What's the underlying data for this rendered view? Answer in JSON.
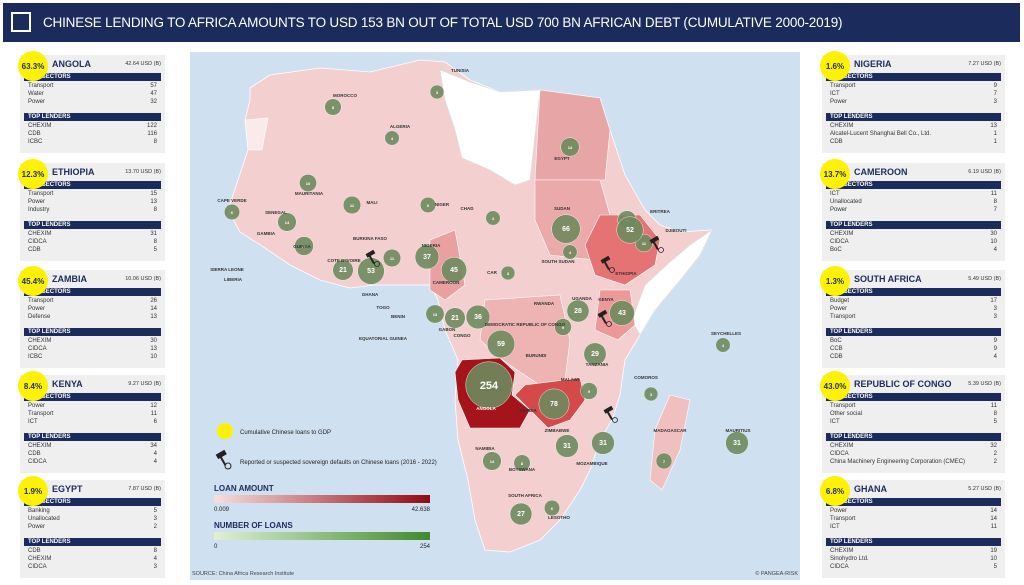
{
  "header": {
    "title": "CHINESE LENDING TO AFRICA AMOUNTS TO USD 153 BN OUT OF TOTAL USD 700 BN AFRICAN DEBT (CUMULATIVE 2000-2019)"
  },
  "panels": [
    {
      "country": "ANGOLA",
      "ratio": "63.3%",
      "amount": "42.64 USD (B)",
      "sectors_title": "TOP SECTORS",
      "sectors": [
        [
          "Transport",
          "57"
        ],
        [
          "Water",
          "47"
        ],
        [
          "Power",
          "32"
        ]
      ],
      "lenders_title": "TOP LENDERS",
      "lenders": [
        [
          "CHEXIM",
          "122"
        ],
        [
          "CDB",
          "116"
        ],
        [
          "ICBC",
          "8"
        ]
      ]
    },
    {
      "country": "ETHIOPIA",
      "ratio": "12.3%",
      "amount": "13.70 USD (B)",
      "sectors_title": "TOP SECTORS",
      "sectors": [
        [
          "Transport",
          "15"
        ],
        [
          "Power",
          "13"
        ],
        [
          "Industry",
          "8"
        ]
      ],
      "lenders_title": "TOP LENDERS",
      "lenders": [
        [
          "CHEXIM",
          "31"
        ],
        [
          "CIDCA",
          "8"
        ],
        [
          "CDB",
          "5"
        ]
      ]
    },
    {
      "country": "ZAMBIA",
      "ratio": "45.4%",
      "amount": "10.06 USD (B)",
      "sectors_title": "TOP SECTORS",
      "sectors": [
        [
          "Transport",
          "26"
        ],
        [
          "Power",
          "14"
        ],
        [
          "Defense",
          "13"
        ]
      ],
      "lenders_title": "TOP LENDERS",
      "lenders": [
        [
          "CHEXIM",
          "30"
        ],
        [
          "CIDCA",
          "13"
        ],
        [
          "ICBC",
          "10"
        ]
      ]
    },
    {
      "country": "KENYA",
      "ratio": "8.4%",
      "amount": "9.27 USD (B)",
      "sectors_title": "TOP SECTORS",
      "sectors": [
        [
          "Power",
          "12"
        ],
        [
          "Transport",
          "11"
        ],
        [
          "ICT",
          "6"
        ]
      ],
      "lenders_title": "TOP LENDERS",
      "lenders": [
        [
          "CHEXIM",
          "34"
        ],
        [
          "CDB",
          "4"
        ],
        [
          "CIDCA",
          "4"
        ]
      ]
    },
    {
      "country": "EGYPT",
      "ratio": "1.9%",
      "amount": "7.87 USD (B)",
      "sectors_title": "TOP SECTORS",
      "sectors": [
        [
          "Banking",
          "5"
        ],
        [
          "Unallocated",
          "3"
        ],
        [
          "Power",
          "2"
        ]
      ],
      "lenders_title": "TOP LENDERS",
      "lenders": [
        [
          "CDB",
          "8"
        ],
        [
          "CHEXIM",
          "4"
        ],
        [
          "CIDCA",
          "3"
        ]
      ]
    },
    {
      "country": "NIGERIA",
      "ratio": "1.6%",
      "amount": "7.27 USD (B)",
      "sectors_title": "TOP SECTORS",
      "sectors": [
        [
          "Transport",
          "9"
        ],
        [
          "ICT",
          "7"
        ],
        [
          "Power",
          "3"
        ]
      ],
      "lenders_title": "TOP LENDERS",
      "lenders": [
        [
          "CHEXIM",
          "13"
        ],
        [
          "Alcatel-Lucent Shanghai Bell Co., Ltd.",
          "1"
        ],
        [
          "CDB",
          "1"
        ]
      ]
    },
    {
      "country": "CAMEROON",
      "ratio": "13.7%",
      "amount": "6.19 USD (B)",
      "sectors_title": "TOP SECTORS",
      "sectors": [
        [
          "ICT",
          "11"
        ],
        [
          "Unallocated",
          "8"
        ],
        [
          "Power",
          "7"
        ]
      ],
      "lenders_title": "TOP LENDERS",
      "lenders": [
        [
          "CHEXIM",
          "30"
        ],
        [
          "CIDCA",
          "10"
        ],
        [
          "BoC",
          "4"
        ]
      ]
    },
    {
      "country": "SOUTH AFRICA",
      "ratio": "1.3%",
      "amount": "5.49 USD (B)",
      "sectors_title": "TOP SECTORS",
      "sectors": [
        [
          "Budget",
          "17"
        ],
        [
          "Power",
          "3"
        ],
        [
          "Transport",
          "3"
        ]
      ],
      "lenders_title": "TOP LENDERS",
      "lenders": [
        [
          "BoC",
          "9"
        ],
        [
          "CCB",
          "9"
        ],
        [
          "CDB",
          "4"
        ]
      ]
    },
    {
      "country": "REPUBLIC OF CONGO",
      "ratio": "43.0%",
      "amount": "5.39 USD (B)",
      "sectors_title": "TOP SECTORS",
      "sectors": [
        [
          "Transport",
          "11"
        ],
        [
          "Other social",
          "8"
        ],
        [
          "ICT",
          "5"
        ]
      ],
      "lenders_title": "TOP LENDERS",
      "lenders": [
        [
          "CHEXIM",
          "32"
        ],
        [
          "CIDCA",
          "2"
        ],
        [
          "China Machinery Engineering Corporation (CMEC)",
          "2"
        ]
      ]
    },
    {
      "country": "GHANA",
      "ratio": "6.8%",
      "amount": "5.27 USD (B)",
      "sectors_title": "TOP SECTORS",
      "sectors": [
        [
          "Power",
          "14"
        ],
        [
          "Transport",
          "14"
        ],
        [
          "ICT",
          "11"
        ]
      ],
      "lenders_title": "TOP LENDERS",
      "lenders": [
        [
          "CHEXIM",
          "19"
        ],
        [
          "Sinohydro Ltd.",
          "10"
        ],
        [
          "CIDCA",
          "5"
        ]
      ]
    }
  ],
  "map": {
    "bubbles": [
      8,
      4,
      3,
      14,
      10,
      11,
      6,
      4,
      66,
      14,
      11,
      52,
      14,
      15,
      21,
      53,
      11,
      37,
      45,
      3,
      4,
      28,
      43,
      9,
      59,
      36,
      21,
      13,
      29,
      254,
      78,
      9,
      31,
      31,
      14,
      8,
      27,
      6,
      7,
      3,
      4,
      31,
      6
    ],
    "labels": [
      "TUNISIA",
      "MOROCCO",
      "ALGERIA",
      "EGYPT",
      "MAURITANIA",
      "MALI",
      "NIGER",
      "CHAD",
      "SUDAN",
      "ERITREA",
      "DJIBOUTI",
      "ETHIOPIA",
      "CAPE VERDE",
      "SENEGAL",
      "GAMBIA",
      "GUINEA",
      "BURKINA FASO",
      "COTE D'IVOIRE",
      "SIERRA LEONE",
      "LIBERIA",
      "GHANA",
      "TOGO",
      "BENIN",
      "NIGERIA",
      "CAMEROON",
      "CAR",
      "SOUTH SUDAN",
      "UGANDA",
      "KENYA",
      "RWANDA",
      "DEMOCRATIC REPUBLIC OF CONGO",
      "BURUNDI",
      "TANZANIA",
      "GABON",
      "CONGO",
      "EQUATORIAL GUINEA",
      "ANGOLA",
      "ZAMBIA",
      "MALAWI",
      "MOZAMBIQUE",
      "ZIMBABWE",
      "NAMIBIA",
      "BOTSWANA",
      "SOUTH AFRICA",
      "LESOTHO",
      "MADAGASCAR",
      "COMOROS",
      "SEYCHELLES",
      "MAURITIUS"
    ],
    "legend": {
      "gdp": "Cumulative Chinese loans to GDP",
      "defaults": "Reported or suspected sovereign defaults on Chinese loans (2016 - 2022)",
      "amount_title": "LOAN AMOUNT",
      "amount_min": "0.009",
      "amount_max": "42.638",
      "loans_title": "NUMBER OF LOANS",
      "loans_min": "0",
      "loans_max": "254"
    },
    "source": "SOURCE: China Africa Research Institute",
    "credit": "© PANGEA-RISK"
  }
}
